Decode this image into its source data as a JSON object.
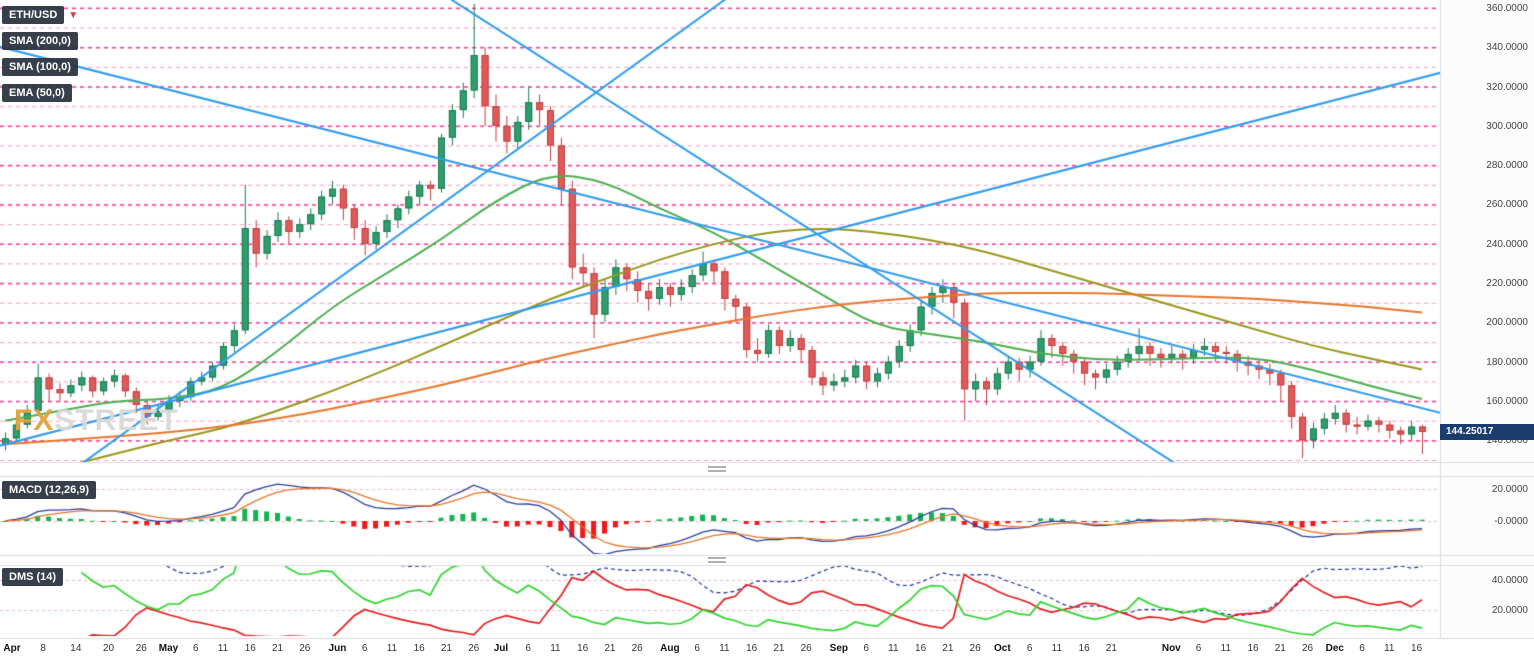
{
  "legend": {
    "symbol": "ETH/USD",
    "indicators": [
      "SMA (200,0)",
      "SMA (100,0)",
      "EMA (50,0)"
    ]
  },
  "panels": {
    "macd": {
      "label": "MACD (12,26,9)"
    },
    "dms": {
      "label": "DMS (14)"
    }
  },
  "watermark": {
    "fx": "FX",
    "street": "STREET"
  },
  "chart_data": {
    "type": "candlestick",
    "symbol": "ETH/USD",
    "main": {
      "price_axis": {
        "min": 129,
        "max": 364,
        "decimals": 4,
        "ticks": [
          360,
          340,
          320,
          300,
          280,
          260,
          240,
          220,
          200,
          180,
          160,
          140
        ]
      },
      "last_price": 144.25017,
      "last_price_label": "144.25017",
      "colors": {
        "up": "#2f9e6e",
        "up_border": "#1d7a50",
        "down": "#e05a5a",
        "down_border": "#c04040",
        "trendline": "#2e9bf0"
      },
      "levels": {
        "major_color": "#ff3c96",
        "minor_color": "#ffa3cc",
        "values": [
          360,
          350,
          340,
          330,
          320,
          310,
          300,
          290,
          280,
          270,
          260,
          250,
          240,
          230,
          220,
          210,
          200,
          190,
          180,
          170,
          160,
          150,
          140,
          130
        ]
      },
      "trendlines": [
        {
          "i1": 0,
          "v1": 100,
          "i2": 66,
          "v2": 364
        },
        {
          "i1": 41,
          "v1": 364,
          "i2": 108,
          "v2": 126
        },
        {
          "i1": 0,
          "v1": 138,
          "i2": 131,
          "v2": 326
        },
        {
          "i1": 60,
          "v1": 255,
          "i2": 131,
          "v2": 155
        }
      ],
      "overlays": [
        {
          "name": "EMA (50,0)",
          "color": "#4caf50",
          "step": 5,
          "values": [
            150,
            155,
            160,
            161,
            166,
            185,
            208,
            225,
            242,
            262,
            276,
            272,
            258,
            246,
            230,
            214,
            198,
            194,
            190,
            184,
            181,
            181,
            182,
            182,
            176,
            168,
            161
          ]
        },
        {
          "name": "SMA (100,0)",
          "color": "#97971d",
          "step": 5,
          "values": [
            118,
            126,
            133,
            140,
            146,
            155,
            165,
            176,
            188,
            200,
            212,
            222,
            232,
            240,
            246,
            248,
            246,
            242,
            236,
            228,
            220,
            212,
            204,
            196,
            188,
            182,
            176
          ]
        },
        {
          "name": "SMA (200,0)",
          "color": "#e8762c",
          "step": 5,
          "values": [
            138,
            140,
            142,
            144,
            147,
            151,
            156,
            162,
            168,
            175,
            182,
            188,
            194,
            199,
            204,
            208,
            211,
            213,
            215,
            215,
            215,
            214,
            213,
            212,
            210,
            208,
            205
          ]
        }
      ],
      "candles": [
        [
          138,
          144,
          135,
          141
        ],
        [
          141,
          150,
          139,
          148
        ],
        [
          148,
          158,
          146,
          155
        ],
        [
          155,
          179,
          153,
          172
        ],
        [
          172,
          174,
          160,
          166
        ],
        [
          166,
          169,
          160,
          164
        ],
        [
          164,
          171,
          162,
          168
        ],
        [
          168,
          175,
          165,
          172
        ],
        [
          172,
          173,
          162,
          165
        ],
        [
          165,
          172,
          163,
          170
        ],
        [
          170,
          176,
          167,
          173
        ],
        [
          173,
          174,
          162,
          165
        ],
        [
          165,
          167,
          154,
          158
        ],
        [
          158,
          160,
          148,
          152
        ],
        [
          152,
          158,
          150,
          155
        ],
        [
          155,
          163,
          153,
          160
        ],
        [
          160,
          165,
          157,
          162
        ],
        [
          162,
          172,
          160,
          170
        ],
        [
          170,
          175,
          168,
          172
        ],
        [
          172,
          180,
          170,
          178
        ],
        [
          178,
          190,
          176,
          188
        ],
        [
          188,
          199,
          185,
          196
        ],
        [
          196,
          270,
          194,
          248
        ],
        [
          248,
          252,
          228,
          235
        ],
        [
          235,
          247,
          232,
          244
        ],
        [
          244,
          256,
          241,
          252
        ],
        [
          252,
          254,
          240,
          246
        ],
        [
          246,
          253,
          243,
          250
        ],
        [
          250,
          258,
          247,
          255
        ],
        [
          255,
          267,
          252,
          264
        ],
        [
          264,
          272,
          260,
          268
        ],
        [
          268,
          270,
          252,
          258
        ],
        [
          258,
          260,
          242,
          248
        ],
        [
          248,
          252,
          234,
          240
        ],
        [
          240,
          249,
          237,
          246
        ],
        [
          246,
          255,
          243,
          252
        ],
        [
          252,
          260,
          248,
          258
        ],
        [
          258,
          267,
          255,
          264
        ],
        [
          264,
          272,
          260,
          270
        ],
        [
          270,
          272,
          262,
          268
        ],
        [
          268,
          296,
          266,
          294
        ],
        [
          294,
          311,
          290,
          308
        ],
        [
          308,
          322,
          304,
          318
        ],
        [
          318,
          362,
          314,
          336
        ],
        [
          336,
          340,
          300,
          310
        ],
        [
          310,
          316,
          292,
          300
        ],
        [
          300,
          305,
          286,
          292
        ],
        [
          292,
          305,
          288,
          302
        ],
        [
          302,
          320,
          298,
          312
        ],
        [
          312,
          316,
          300,
          308
        ],
        [
          308,
          310,
          282,
          290
        ],
        [
          290,
          294,
          260,
          268
        ],
        [
          268,
          272,
          222,
          228
        ],
        [
          228,
          235,
          218,
          225
        ],
        [
          225,
          228,
          192,
          204
        ],
        [
          204,
          222,
          200,
          218
        ],
        [
          218,
          232,
          214,
          228
        ],
        [
          228,
          230,
          216,
          222
        ],
        [
          222,
          226,
          210,
          216
        ],
        [
          216,
          220,
          206,
          212
        ],
        [
          212,
          222,
          209,
          218
        ],
        [
          218,
          220,
          208,
          214
        ],
        [
          214,
          222,
          211,
          218
        ],
        [
          218,
          227,
          215,
          224
        ],
        [
          224,
          236,
          221,
          230
        ],
        [
          230,
          232,
          220,
          226
        ],
        [
          226,
          228,
          206,
          212
        ],
        [
          212,
          214,
          200,
          208
        ],
        [
          208,
          210,
          182,
          186
        ],
        [
          186,
          192,
          180,
          184
        ],
        [
          184,
          199,
          182,
          196
        ],
        [
          196,
          198,
          184,
          188
        ],
        [
          188,
          196,
          185,
          192
        ],
        [
          192,
          194,
          180,
          186
        ],
        [
          186,
          188,
          168,
          172
        ],
        [
          172,
          175,
          163,
          168
        ],
        [
          168,
          174,
          165,
          170
        ],
        [
          170,
          176,
          167,
          172
        ],
        [
          172,
          181,
          169,
          178
        ],
        [
          178,
          180,
          166,
          170
        ],
        [
          170,
          177,
          167,
          174
        ],
        [
          174,
          183,
          171,
          180
        ],
        [
          180,
          191,
          177,
          188
        ],
        [
          188,
          199,
          185,
          196
        ],
        [
          196,
          211,
          193,
          208
        ],
        [
          208,
          218,
          204,
          215
        ],
        [
          215,
          222,
          210,
          218
        ],
        [
          218,
          220,
          202,
          210
        ],
        [
          210,
          212,
          150,
          166
        ],
        [
          166,
          174,
          160,
          170
        ],
        [
          170,
          172,
          158,
          166
        ],
        [
          166,
          177,
          163,
          174
        ],
        [
          174,
          183,
          171,
          180
        ],
        [
          180,
          182,
          170,
          176
        ],
        [
          176,
          183,
          172,
          180
        ],
        [
          180,
          196,
          178,
          192
        ],
        [
          192,
          194,
          182,
          188
        ],
        [
          188,
          190,
          178,
          184
        ],
        [
          184,
          186,
          174,
          180
        ],
        [
          180,
          182,
          168,
          174
        ],
        [
          174,
          176,
          166,
          172
        ],
        [
          172,
          179,
          169,
          176
        ],
        [
          176,
          183,
          173,
          180
        ],
        [
          180,
          187,
          177,
          184
        ],
        [
          184,
          197,
          181,
          188
        ],
        [
          188,
          190,
          178,
          184
        ],
        [
          184,
          187,
          177,
          182
        ],
        [
          182,
          188,
          179,
          184
        ],
        [
          184,
          186,
          176,
          182
        ],
        [
          182,
          189,
          179,
          186
        ],
        [
          186,
          192,
          183,
          188
        ],
        [
          188,
          190,
          180,
          185
        ],
        [
          185,
          188,
          179,
          184
        ],
        [
          184,
          186,
          175,
          180
        ],
        [
          180,
          183,
          173,
          178
        ],
        [
          178,
          181,
          171,
          176
        ],
        [
          176,
          179,
          168,
          174
        ],
        [
          174,
          176,
          160,
          168
        ],
        [
          168,
          170,
          146,
          152
        ],
        [
          152,
          154,
          131,
          140
        ],
        [
          140,
          149,
          136,
          146
        ],
        [
          146,
          154,
          143,
          151
        ],
        [
          151,
          158,
          148,
          154
        ],
        [
          154,
          156,
          144,
          148
        ],
        [
          148,
          152,
          143,
          147
        ],
        [
          147,
          153,
          145,
          150
        ],
        [
          150,
          152,
          144,
          148
        ],
        [
          148,
          150,
          141,
          145
        ],
        [
          145,
          147,
          138,
          143
        ],
        [
          143,
          150,
          140,
          147
        ],
        [
          147,
          148,
          133,
          144.25
        ]
      ]
    },
    "macd": {
      "label": "MACD (12,26,9)",
      "ticks": [
        {
          "v": 20,
          "label": "20.0000"
        },
        {
          "v": 0,
          "label": "-0.0000"
        }
      ],
      "colors": {
        "line": "#2b3f9e",
        "signal": "#e8762c",
        "hist_pos": "#0fb64d",
        "hist_neg": "#f01818"
      }
    },
    "dms": {
      "label": "DMS (14)",
      "ticks": [
        {
          "v": 40,
          "label": "40.0000"
        },
        {
          "v": 20,
          "label": "20.0000"
        }
      ],
      "colors": {
        "plus_di": "#2ed52e",
        "minus_di": "#e41f1f",
        "adx": "#2333a0"
      }
    },
    "x_labels": [
      [
        "Apr",
        0,
        1
      ],
      [
        "8",
        3.5,
        0
      ],
      [
        "14",
        6.5,
        0
      ],
      [
        "20",
        9.5,
        0
      ],
      [
        "26",
        12.5,
        0
      ],
      [
        "May",
        15,
        1
      ],
      [
        "6",
        17.5,
        0
      ],
      [
        "11",
        20,
        0
      ],
      [
        "16",
        22.5,
        0
      ],
      [
        "21",
        25,
        0
      ],
      [
        "26",
        27.5,
        0
      ],
      [
        "Jun",
        30.5,
        1
      ],
      [
        "6",
        33,
        0
      ],
      [
        "11",
        35.5,
        0
      ],
      [
        "16",
        38,
        0
      ],
      [
        "21",
        40.5,
        0
      ],
      [
        "26",
        43,
        0
      ],
      [
        "Jul",
        45.5,
        1
      ],
      [
        "6",
        48,
        0
      ],
      [
        "11",
        50.5,
        0
      ],
      [
        "16",
        53,
        0
      ],
      [
        "21",
        55.5,
        0
      ],
      [
        "26",
        58,
        0
      ],
      [
        "Aug",
        61,
        1
      ],
      [
        "6",
        63.5,
        0
      ],
      [
        "11",
        66,
        0
      ],
      [
        "16",
        68.5,
        0
      ],
      [
        "21",
        71,
        0
      ],
      [
        "26",
        73.5,
        0
      ],
      [
        "Sep",
        76.5,
        1
      ],
      [
        "6",
        79,
        0
      ],
      [
        "11",
        81.5,
        0
      ],
      [
        "16",
        84,
        0
      ],
      [
        "21",
        86.5,
        0
      ],
      [
        "26",
        89,
        0
      ],
      [
        "Oct",
        91.5,
        1
      ],
      [
        "6",
        94,
        0
      ],
      [
        "11",
        96.5,
        0
      ],
      [
        "16",
        99,
        0
      ],
      [
        "21",
        101.5,
        0
      ],
      [
        "Nov",
        107,
        1
      ],
      [
        "6",
        109.5,
        0
      ],
      [
        "11",
        112,
        0
      ],
      [
        "16",
        114.5,
        0
      ],
      [
        "21",
        117,
        0
      ],
      [
        "26",
        119.5,
        0
      ],
      [
        "Dec",
        122,
        1
      ],
      [
        "6",
        124.5,
        0
      ],
      [
        "11",
        127,
        0
      ],
      [
        "16",
        129.5,
        0
      ]
    ]
  }
}
